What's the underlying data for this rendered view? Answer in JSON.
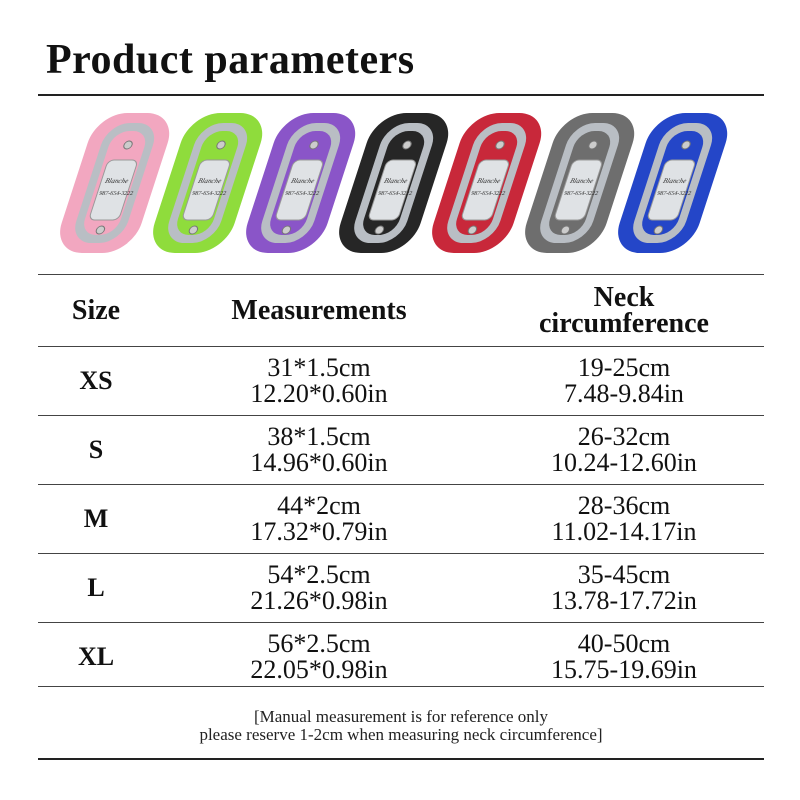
{
  "title": "Product parameters",
  "collar_colors": [
    "#f2a7c0",
    "#8fdc3c",
    "#8a55c8",
    "#262626",
    "#c8283a",
    "#6e6e6e",
    "#2446c8"
  ],
  "tag_text": [
    "Blanche",
    "987-654-3222"
  ],
  "table": {
    "headers": [
      "Size",
      "Measurements",
      "Neck circumference"
    ],
    "rows": [
      {
        "size": "XS",
        "measure_cm": "31*1.5cm",
        "measure_in": "12.20*0.60in",
        "neck_cm": "19-25cm",
        "neck_in": "7.48-9.84in"
      },
      {
        "size": "S",
        "measure_cm": "38*1.5cm",
        "measure_in": "14.96*0.60in",
        "neck_cm": "26-32cm",
        "neck_in": "10.24-12.60in"
      },
      {
        "size": "M",
        "measure_cm": "44*2cm",
        "measure_in": "17.32*0.79in",
        "neck_cm": "28-36cm",
        "neck_in": "11.02-14.17in"
      },
      {
        "size": "L",
        "measure_cm": "54*2.5cm",
        "measure_in": "21.26*0.98in",
        "neck_cm": "35-45cm",
        "neck_in": "13.78-17.72in"
      },
      {
        "size": "XL",
        "measure_cm": "56*2.5cm",
        "measure_in": "22.05*0.98in",
        "neck_cm": "40-50cm",
        "neck_in": "15.75-19.69in"
      }
    ]
  },
  "note": {
    "line1": "[Manual measurement is for reference only",
    "line2": "please reserve 1-2cm when measuring neck circumference]"
  }
}
